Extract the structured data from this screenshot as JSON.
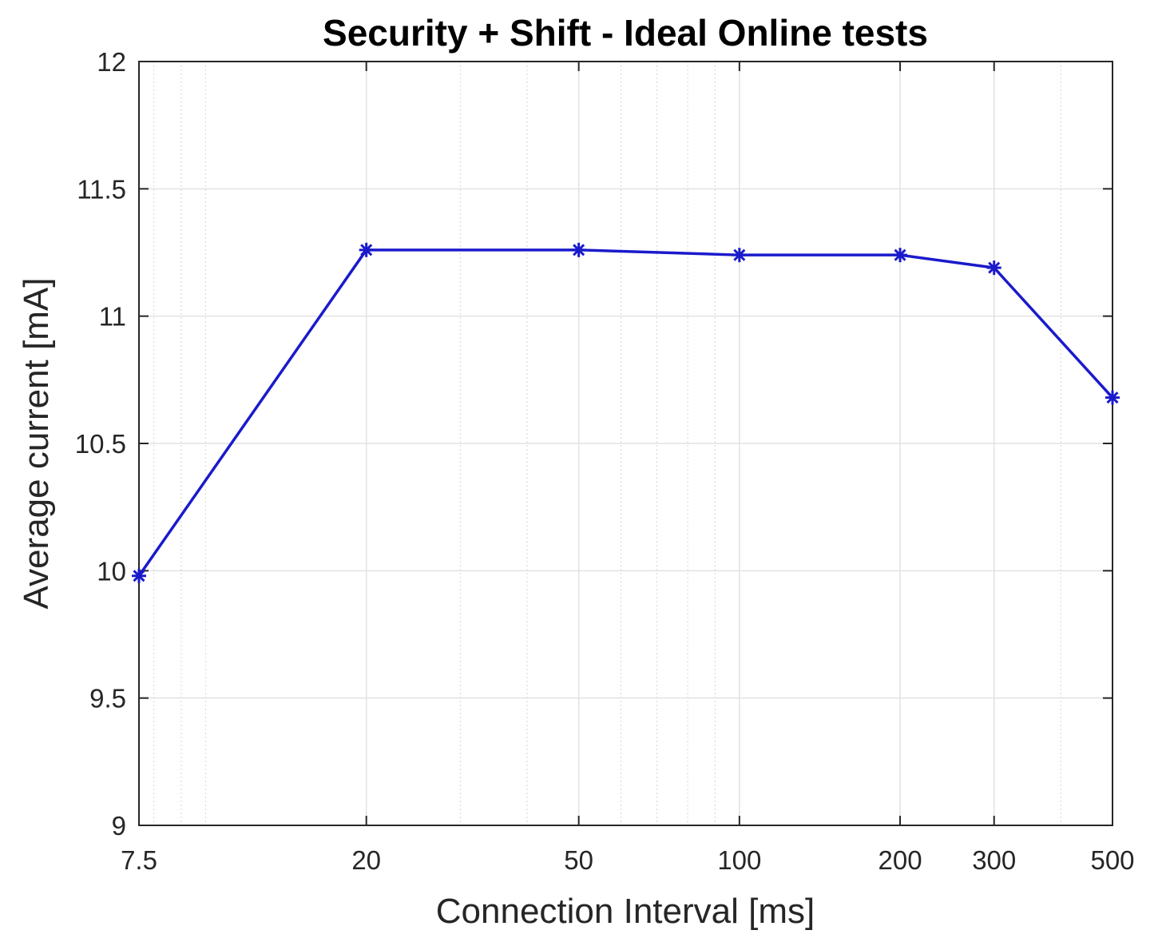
{
  "chart_data": {
    "type": "line",
    "title": "Security + Shift - Ideal Online tests",
    "xlabel": "Connection Interval [ms]",
    "ylabel": "Average current [mA]",
    "xscale": "log",
    "xlim": [
      7.5,
      500
    ],
    "ylim": [
      9,
      12
    ],
    "grid": true,
    "xticks": [
      7.5,
      20,
      50,
      100,
      200,
      300,
      500
    ],
    "xtick_labels": [
      "7.5",
      "20",
      "50",
      "100",
      "200",
      "300",
      "500"
    ],
    "yticks": [
      9,
      9.5,
      10,
      10.5,
      11,
      11.5,
      12
    ],
    "ytick_labels": [
      "9",
      "9.5",
      "10",
      "10.5",
      "11",
      "11.5",
      "12"
    ],
    "series": [
      {
        "color": "#1a1acc",
        "marker": "asterisk",
        "x": [
          7.5,
          20,
          50,
          100,
          200,
          300,
          500
        ],
        "y": [
          9.98,
          11.26,
          11.26,
          11.24,
          11.24,
          11.19,
          10.68
        ]
      }
    ]
  }
}
